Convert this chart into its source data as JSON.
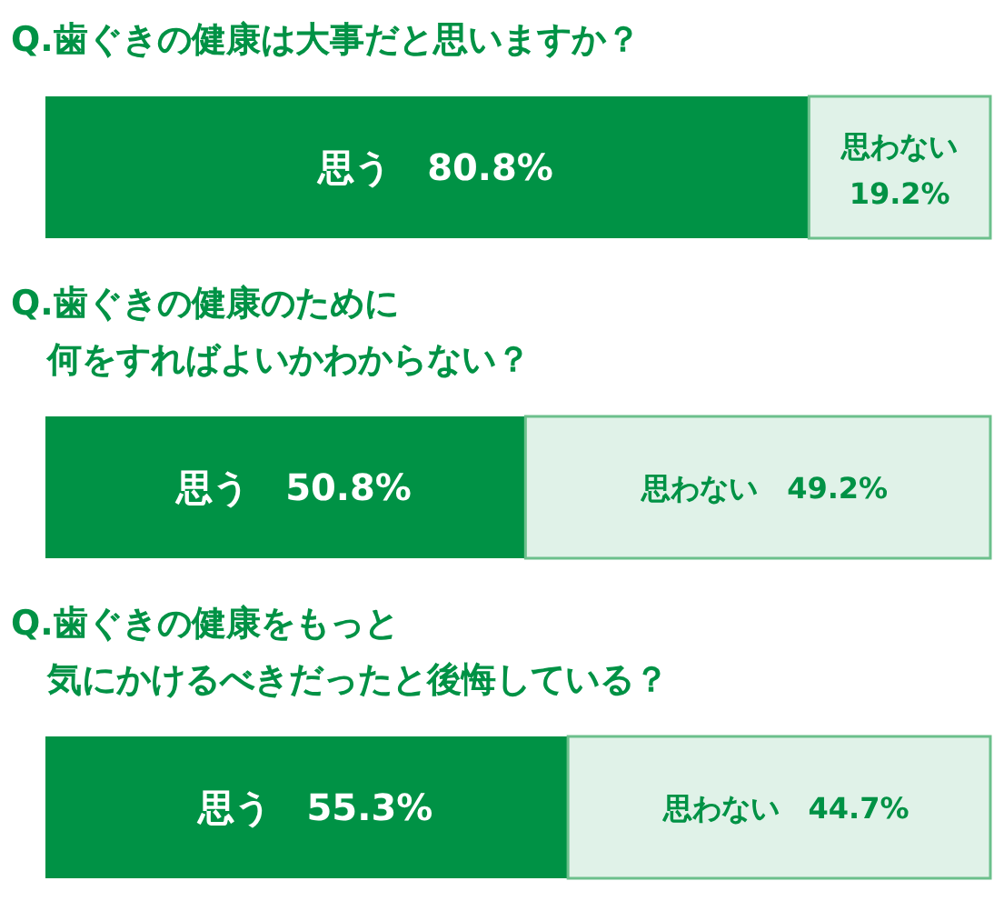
{
  "chart_data": [
    {
      "type": "bar",
      "orientation": "horizontal",
      "stacked": true,
      "title": "Q.歯ぐきの健康は大事だと思いますか？",
      "categories": [
        null
      ],
      "series": [
        {
          "name": "思う",
          "color": "#009245",
          "values": [
            80.8
          ],
          "value_labels": [
            "80.8%"
          ]
        },
        {
          "name": "思わない",
          "color": "#e0f2e8",
          "values": [
            19.2
          ],
          "value_labels": [
            "19.2%"
          ]
        }
      ]
    },
    {
      "type": "bar",
      "orientation": "horizontal",
      "stacked": true,
      "title": "Q.歯ぐきの健康のために何をすればよいかわからない？",
      "categories": [
        null
      ],
      "series": [
        {
          "name": "思う",
          "color": "#009245",
          "values": [
            50.8
          ],
          "value_labels": [
            "50.8%"
          ]
        },
        {
          "name": "思わない",
          "color": "#e0f2e8",
          "values": [
            49.2
          ],
          "value_labels": [
            "49.2%"
          ]
        }
      ]
    },
    {
      "type": "bar",
      "orientation": "horizontal",
      "stacked": true,
      "title": "Q.歯ぐきの健康をもっと気にかけるべきだったと後悔している？",
      "categories": [
        null
      ],
      "series": [
        {
          "name": "思う",
          "color": "#009245",
          "values": [
            55.3
          ],
          "value_labels": [
            "55.3%"
          ]
        },
        {
          "name": "思わない",
          "color": "#e0f2e8",
          "values": [
            44.7
          ],
          "value_labels": [
            "44.7%"
          ]
        }
      ]
    }
  ]
}
